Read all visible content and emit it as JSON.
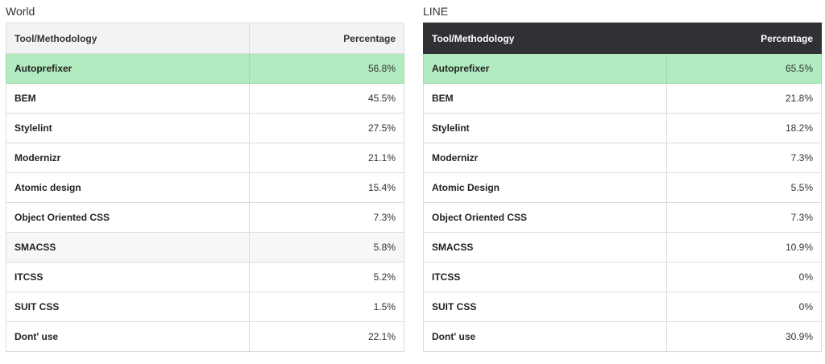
{
  "colors": {
    "highlight": "#b2ebbf",
    "dark_header": "#2f3134",
    "light_header": "#f3f3f3"
  },
  "world": {
    "title": "World",
    "headers": {
      "name": "Tool/Methodology",
      "pct": "Percentage"
    },
    "rows": [
      {
        "name": "Autoprefixer",
        "pct": "56.8%"
      },
      {
        "name": "BEM",
        "pct": "45.5%"
      },
      {
        "name": "Stylelint",
        "pct": "27.5%"
      },
      {
        "name": "Modernizr",
        "pct": "21.1%"
      },
      {
        "name": "Atomic design",
        "pct": "15.4%"
      },
      {
        "name": "Object Oriented CSS",
        "pct": "7.3%"
      },
      {
        "name": "SMACSS",
        "pct": "5.8%"
      },
      {
        "name": "ITCSS",
        "pct": "5.2%"
      },
      {
        "name": "SUIT CSS",
        "pct": "1.5%"
      },
      {
        "name": "Dont' use",
        "pct": "22.1%"
      }
    ]
  },
  "line": {
    "title": "LINE",
    "headers": {
      "name": "Tool/Methodology",
      "pct": "Percentage"
    },
    "rows": [
      {
        "name": "Autoprefixer",
        "pct": "65.5%"
      },
      {
        "name": "BEM",
        "pct": "21.8%"
      },
      {
        "name": "Stylelint",
        "pct": "18.2%"
      },
      {
        "name": "Modernizr",
        "pct": "7.3%"
      },
      {
        "name": "Atomic Design",
        "pct": "5.5%"
      },
      {
        "name": "Object Oriented CSS",
        "pct": "7.3%"
      },
      {
        "name": "SMACSS",
        "pct": "10.9%"
      },
      {
        "name": "ITCSS",
        "pct": "0%"
      },
      {
        "name": "SUIT CSS",
        "pct": "0%"
      },
      {
        "name": "Dont' use",
        "pct": "30.9%"
      }
    ]
  }
}
